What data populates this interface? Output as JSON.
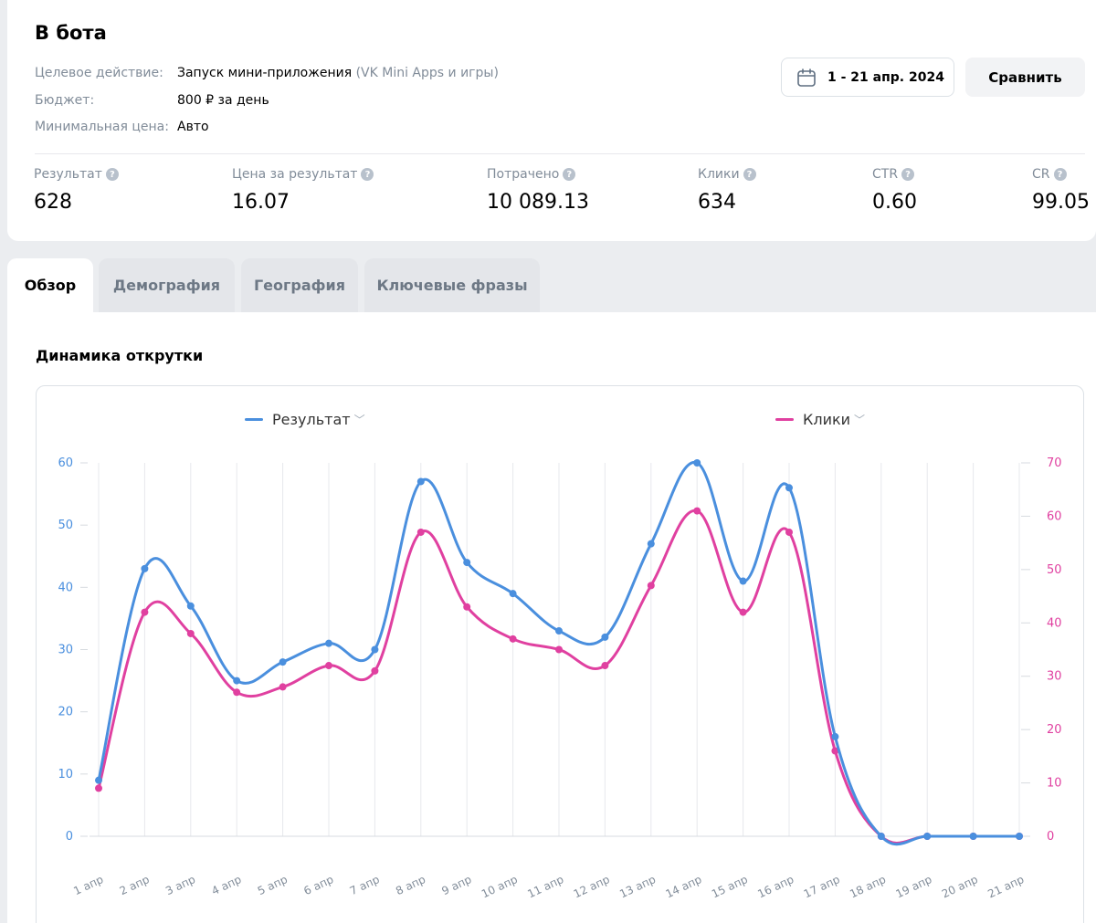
{
  "header": {
    "title": "В бота",
    "info": [
      {
        "key": "Целевое действие:",
        "value": "Запуск мини-приложения",
        "value_muted": "(VK Mini Apps и игры)"
      },
      {
        "key": "Бюджет:",
        "value": "800 ₽ за день",
        "value_muted": ""
      },
      {
        "key": "Минимальная цена:",
        "value": "Авто",
        "value_muted": ""
      }
    ],
    "date_range": "1 - 21 апр. 2024",
    "compare_label": "Сравнить"
  },
  "metrics": [
    {
      "label": "Результат",
      "value": "628"
    },
    {
      "label": "Цена за результат",
      "value": "16.07"
    },
    {
      "label": "Потрачено",
      "value": "10 089.13"
    },
    {
      "label": "Клики",
      "value": "634"
    },
    {
      "label": "CTR",
      "value": "0.60"
    },
    {
      "label": "CR",
      "value": "99.05"
    }
  ],
  "tabs": [
    "Обзор",
    "Демография",
    "География",
    "Ключевые фразы"
  ],
  "active_tab": "Обзор",
  "section_title": "Динамика открутки",
  "colors": {
    "blue": "#4a8fde",
    "pink": "#e040a0",
    "grid": "#e7e8ec",
    "axis_text_left": "#4a8fde",
    "axis_text_right": "#e040a0"
  },
  "chart_data": {
    "type": "line",
    "categories": [
      "1 апр",
      "2 апр",
      "3 апр",
      "4 апр",
      "5 апр",
      "6 апр",
      "7 апр",
      "8 апр",
      "9 апр",
      "10 апр",
      "11 апр",
      "12 апр",
      "13 апр",
      "14 апр",
      "15 апр",
      "16 апр",
      "17 апр",
      "18 апр",
      "19 апр",
      "20 апр",
      "21 апр"
    ],
    "series": [
      {
        "name": "Результат",
        "axis": "left",
        "color": "#4a8fde",
        "values": [
          9,
          43,
          37,
          25,
          28,
          31,
          30,
          57,
          44,
          39,
          33,
          32,
          47,
          60,
          41,
          56,
          16,
          0,
          0,
          0,
          0
        ]
      },
      {
        "name": "Клики",
        "axis": "right",
        "color": "#e040a0",
        "values": [
          9,
          42,
          38,
          27,
          28,
          32,
          31,
          57,
          43,
          37,
          35,
          32,
          47,
          61,
          42,
          57,
          16,
          0,
          0,
          0,
          0
        ]
      }
    ],
    "left_axis": {
      "ticks": [
        0,
        10,
        20,
        30,
        40,
        50,
        60
      ],
      "ylim": [
        0,
        60
      ]
    },
    "right_axis": {
      "ticks": [
        0,
        10,
        20,
        30,
        40,
        50,
        60,
        70
      ],
      "ylim": [
        0,
        70
      ]
    },
    "legend_position": "top",
    "grid": "vertical"
  }
}
